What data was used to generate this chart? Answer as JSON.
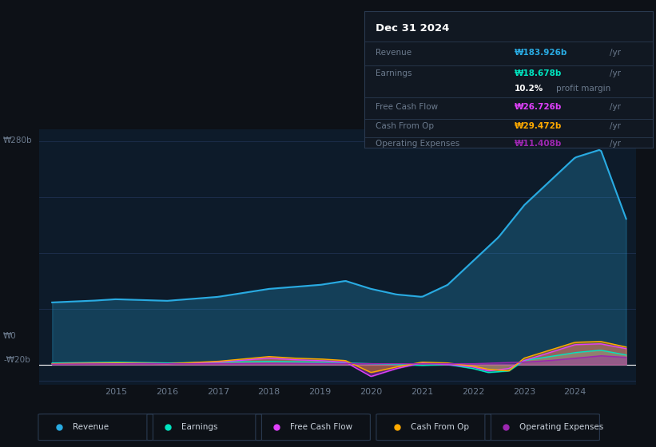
{
  "bg_color": "#0d1117",
  "plot_bg_color": "#0d1b2a",
  "grid_color": "#1e3050",
  "text_color": "#c8d0da",
  "dim_text_color": "#6b7a8d",
  "title_text": "Dec 31 2024",
  "ylabel_top": "₩280b",
  "ylabel_zero": "₩0",
  "ylabel_neg": "-₩20b",
  "ylim": [
    -25,
    295
  ],
  "xlim": [
    2013.5,
    2025.2
  ],
  "xticks": [
    2015,
    2016,
    2017,
    2018,
    2019,
    2020,
    2021,
    2022,
    2023,
    2024
  ],
  "series_colors": {
    "revenue": "#29abe2",
    "earnings": "#00e5c0",
    "fcf": "#e040fb",
    "cashfromop": "#ffaa00",
    "opex": "#9c27b0"
  },
  "legend_items": [
    {
      "label": "Revenue",
      "color": "#29abe2"
    },
    {
      "label": "Earnings",
      "color": "#00e5c0"
    },
    {
      "label": "Free Cash Flow",
      "color": "#e040fb"
    },
    {
      "label": "Cash From Op",
      "color": "#ffaa00"
    },
    {
      "label": "Operating Expenses",
      "color": "#9c27b0"
    }
  ]
}
